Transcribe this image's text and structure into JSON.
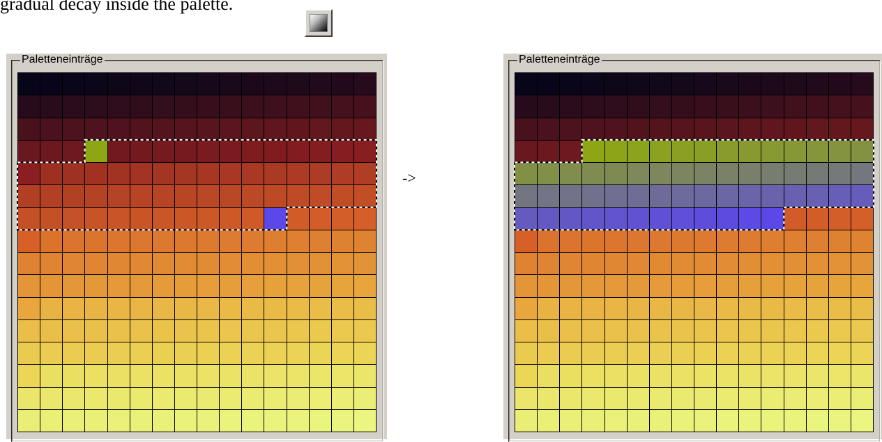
{
  "caption": "gradual decay inside the palette.",
  "gradient_button": {
    "icon": "gradient-icon"
  },
  "arrow": "->",
  "left_panel": {
    "legend": "Paletteneinträge",
    "selection": {
      "start": 51,
      "end": 107
    },
    "marked": [
      {
        "index": 51,
        "color": "#8ea614"
      },
      {
        "index": 107,
        "color": "#5b48e8"
      }
    ]
  },
  "right_panel": {
    "legend": "Paletteneinträge",
    "selection": {
      "start": 51,
      "end": 107
    },
    "gradient": {
      "from": "#8ea614",
      "to": "#5b48e8"
    }
  },
  "palette": {
    "rows": 16,
    "cols": 16,
    "stops": [
      {
        "row": 0,
        "color": "#06051a"
      },
      {
        "row": 3,
        "color": "#8a1e20"
      },
      {
        "row": 6,
        "color": "#d66028"
      },
      {
        "row": 9,
        "color": "#e8a63c"
      },
      {
        "row": 12,
        "color": "#ecd656"
      },
      {
        "row": 15,
        "color": "#eaf680"
      }
    ]
  }
}
